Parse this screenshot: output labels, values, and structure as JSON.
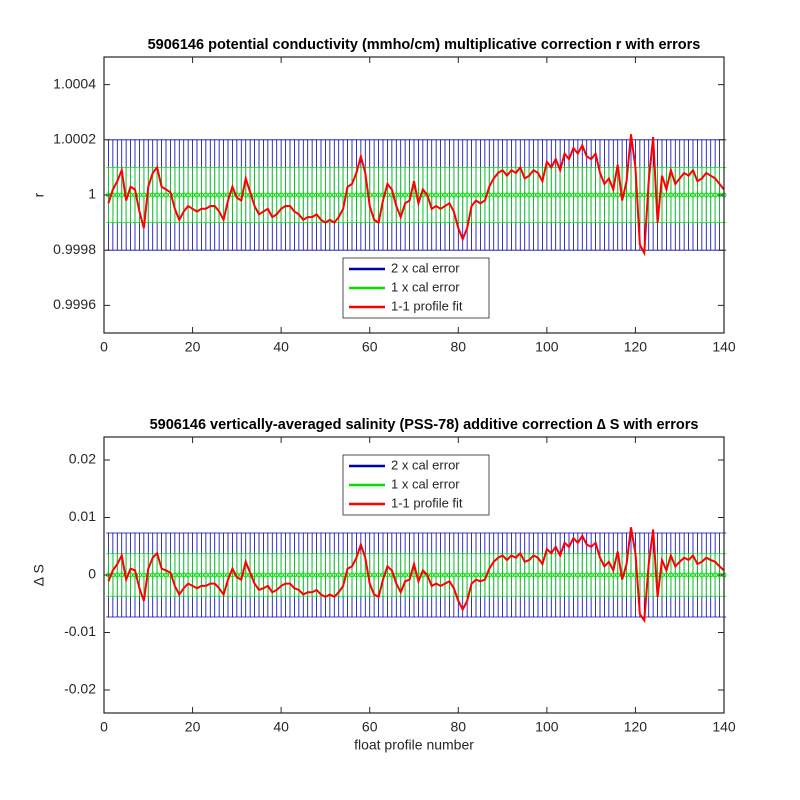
{
  "chart_data": [
    {
      "type": "errorbar-line",
      "title": "5906146 potential conductivity (mmho/cm) multiplicative correction r with errors",
      "ylabel": "r",
      "xlim": [
        0,
        140
      ],
      "xticks": [
        0,
        20,
        40,
        60,
        80,
        100,
        120,
        140
      ],
      "ylim": [
        0.9995,
        1.0005
      ],
      "yticks": [
        0.9996,
        0.9998,
        1,
        1.0002,
        1.0004
      ],
      "legend": "south",
      "x": [
        1,
        2,
        3,
        4,
        5,
        6,
        7,
        8,
        9,
        10,
        11,
        12,
        13,
        14,
        15,
        16,
        17,
        18,
        19,
        20,
        21,
        22,
        23,
        24,
        25,
        26,
        27,
        28,
        29,
        30,
        31,
        32,
        33,
        34,
        35,
        36,
        37,
        38,
        39,
        40,
        41,
        42,
        43,
        44,
        45,
        46,
        47,
        48,
        49,
        50,
        51,
        52,
        53,
        54,
        55,
        56,
        57,
        58,
        59,
        60,
        61,
        62,
        63,
        64,
        65,
        66,
        67,
        68,
        69,
        70,
        71,
        72,
        73,
        74,
        75,
        76,
        77,
        78,
        79,
        80,
        81,
        82,
        83,
        84,
        85,
        86,
        87,
        88,
        89,
        90,
        91,
        92,
        93,
        94,
        95,
        96,
        97,
        98,
        99,
        100,
        101,
        102,
        103,
        104,
        105,
        106,
        107,
        108,
        109,
        110,
        111,
        112,
        113,
        114,
        115,
        116,
        117,
        118,
        119,
        120,
        121,
        122,
        123,
        124,
        125,
        126,
        127,
        128,
        129,
        130,
        131,
        132,
        133,
        134,
        135,
        136,
        137,
        138,
        139,
        140
      ],
      "series": [
        {
          "name": "2 x cal error",
          "color": "#0000b4",
          "center": 1,
          "error": 0.0002
        },
        {
          "name": "1 x cal error",
          "color": "#00e000",
          "center": 1,
          "error": 0.0001
        },
        {
          "name": "1-1 profile fit",
          "color": "#ff0000",
          "values": [
            0.99997,
            1.00002,
            1.00005,
            1.00009,
            0.99998,
            1.00003,
            1.00002,
            0.99994,
            0.99988,
            1.00003,
            1.00008,
            1.0001,
            1.00003,
            1.00002,
            1.00001,
            0.99995,
            0.99991,
            0.99994,
            0.99996,
            0.99995,
            0.99994,
            0.99995,
            0.99995,
            0.99996,
            0.99996,
            0.99994,
            0.99991,
            0.99998,
            1.00003,
            0.99999,
            0.99998,
            1.00006,
            1.00001,
            0.99996,
            0.99993,
            0.99994,
            0.99995,
            0.99992,
            0.99993,
            0.99995,
            0.99996,
            0.99996,
            0.99994,
            0.99993,
            0.99991,
            0.99992,
            0.99992,
            0.99993,
            0.99991,
            0.9999,
            0.99991,
            0.9999,
            0.99992,
            0.99995,
            1.00003,
            1.00004,
            1.00008,
            1.00014,
            1.00008,
            0.99996,
            0.99991,
            0.9999,
            0.99998,
            1.00004,
            1.00002,
            0.99996,
            0.99992,
            0.99997,
            0.99998,
            1.00005,
            0.99997,
            1.00002,
            1,
            0.99995,
            0.99996,
            0.99995,
            0.99996,
            0.99997,
            0.99994,
            0.99988,
            0.99984,
            0.99988,
            0.99996,
            0.99998,
            0.99997,
            0.99998,
            1.00003,
            1.00006,
            1.00008,
            1.00009,
            1.00007,
            1.00009,
            1.00008,
            1.0001,
            1.00006,
            1.00007,
            1.00009,
            1.00008,
            1.00005,
            1.00012,
            1.0001,
            1.00013,
            1.00009,
            1.00015,
            1.00013,
            1.00017,
            1.00015,
            1.00018,
            1.00014,
            1.00013,
            1.00015,
            1.00008,
            1.00004,
            1.00006,
            1.00002,
            1.00011,
            0.99998,
            1.00005,
            1.00022,
            1.0001,
            0.99982,
            0.99979,
            1.00005,
            1.00021,
            0.9999,
            1.00007,
            1.00002,
            1.00009,
            1.00004,
            1.00006,
            1.00008,
            1.00007,
            1.00009,
            1.00005,
            1.00006,
            1.00008,
            1.00007,
            1.00006,
            1.00004,
            1.00002
          ]
        }
      ]
    },
    {
      "type": "errorbar-line",
      "title": "5906146 vertically-averaged salinity (PSS-78) additive correction ∆ S with errors",
      "ylabel": "∆ S",
      "xlabel": "float profile number",
      "xlim": [
        0,
        140
      ],
      "xticks": [
        0,
        20,
        40,
        60,
        80,
        100,
        120,
        140
      ],
      "ylim": [
        -0.024,
        0.024
      ],
      "yticks": [
        -0.02,
        -0.01,
        0,
        0.01,
        0.02
      ],
      "legend": "north",
      "x": [
        1,
        2,
        3,
        4,
        5,
        6,
        7,
        8,
        9,
        10,
        11,
        12,
        13,
        14,
        15,
        16,
        17,
        18,
        19,
        20,
        21,
        22,
        23,
        24,
        25,
        26,
        27,
        28,
        29,
        30,
        31,
        32,
        33,
        34,
        35,
        36,
        37,
        38,
        39,
        40,
        41,
        42,
        43,
        44,
        45,
        46,
        47,
        48,
        49,
        50,
        51,
        52,
        53,
        54,
        55,
        56,
        57,
        58,
        59,
        60,
        61,
        62,
        63,
        64,
        65,
        66,
        67,
        68,
        69,
        70,
        71,
        72,
        73,
        74,
        75,
        76,
        77,
        78,
        79,
        80,
        81,
        82,
        83,
        84,
        85,
        86,
        87,
        88,
        89,
        90,
        91,
        92,
        93,
        94,
        95,
        96,
        97,
        98,
        99,
        100,
        101,
        102,
        103,
        104,
        105,
        106,
        107,
        108,
        109,
        110,
        111,
        112,
        113,
        114,
        115,
        116,
        117,
        118,
        119,
        120,
        121,
        122,
        123,
        124,
        125,
        126,
        127,
        128,
        129,
        130,
        131,
        132,
        133,
        134,
        135,
        136,
        137,
        138,
        139,
        140
      ],
      "series": [
        {
          "name": "2 x cal error",
          "color": "#0000b4",
          "center": 0,
          "error": 0.0073
        },
        {
          "name": "1 x cal error",
          "color": "#00e000",
          "center": 0,
          "error": 0.0037
        },
        {
          "name": "1-1 profile fit",
          "color": "#ff0000",
          "values": [
            -0.0011,
            0.0008,
            0.0019,
            0.0034,
            -0.0008,
            0.0011,
            0.0008,
            -0.0023,
            -0.0045,
            0.0011,
            0.003,
            0.0038,
            0.0011,
            0.0008,
            0.0004,
            -0.0019,
            -0.0034,
            -0.0023,
            -0.0015,
            -0.0019,
            -0.0023,
            -0.0019,
            -0.0019,
            -0.0015,
            -0.0015,
            -0.0023,
            -0.0034,
            -0.0008,
            0.0011,
            -0.0004,
            -0.0008,
            0.0023,
            0.0004,
            -0.0015,
            -0.0026,
            -0.0023,
            -0.0019,
            -0.003,
            -0.0026,
            -0.0019,
            -0.0015,
            -0.0015,
            -0.0023,
            -0.0026,
            -0.0034,
            -0.003,
            -0.003,
            -0.0026,
            -0.0034,
            -0.0038,
            -0.0034,
            -0.0038,
            -0.003,
            -0.0019,
            0.0011,
            0.0015,
            0.003,
            0.0053,
            0.003,
            -0.0015,
            -0.0034,
            -0.0038,
            -0.0008,
            0.0015,
            0.0008,
            -0.0015,
            -0.003,
            -0.0011,
            -0.0008,
            0.0019,
            -0.0011,
            0.0008,
            0,
            -0.0019,
            -0.0015,
            -0.0019,
            -0.0015,
            -0.0011,
            -0.0023,
            -0.0045,
            -0.006,
            -0.0045,
            -0.0015,
            -0.0008,
            -0.0011,
            -0.0008,
            0.0011,
            0.0023,
            0.003,
            0.0034,
            0.0026,
            0.0034,
            0.003,
            0.0038,
            0.0023,
            0.0026,
            0.0034,
            0.003,
            0.0019,
            0.0045,
            0.0038,
            0.0049,
            0.0034,
            0.0056,
            0.0049,
            0.0064,
            0.0056,
            0.0068,
            0.0053,
            0.0049,
            0.0056,
            0.003,
            0.0015,
            0.0023,
            0.0008,
            0.0041,
            -0.0008,
            0.0019,
            0.0083,
            0.0038,
            -0.0068,
            -0.0079,
            0.0019,
            0.0079,
            -0.0038,
            0.0026,
            0.0008,
            0.0034,
            0.0015,
            0.0023,
            0.003,
            0.0026,
            0.0034,
            0.0019,
            0.0023,
            0.003,
            0.0026,
            0.0023,
            0.0015,
            0.0008
          ]
        }
      ]
    }
  ]
}
